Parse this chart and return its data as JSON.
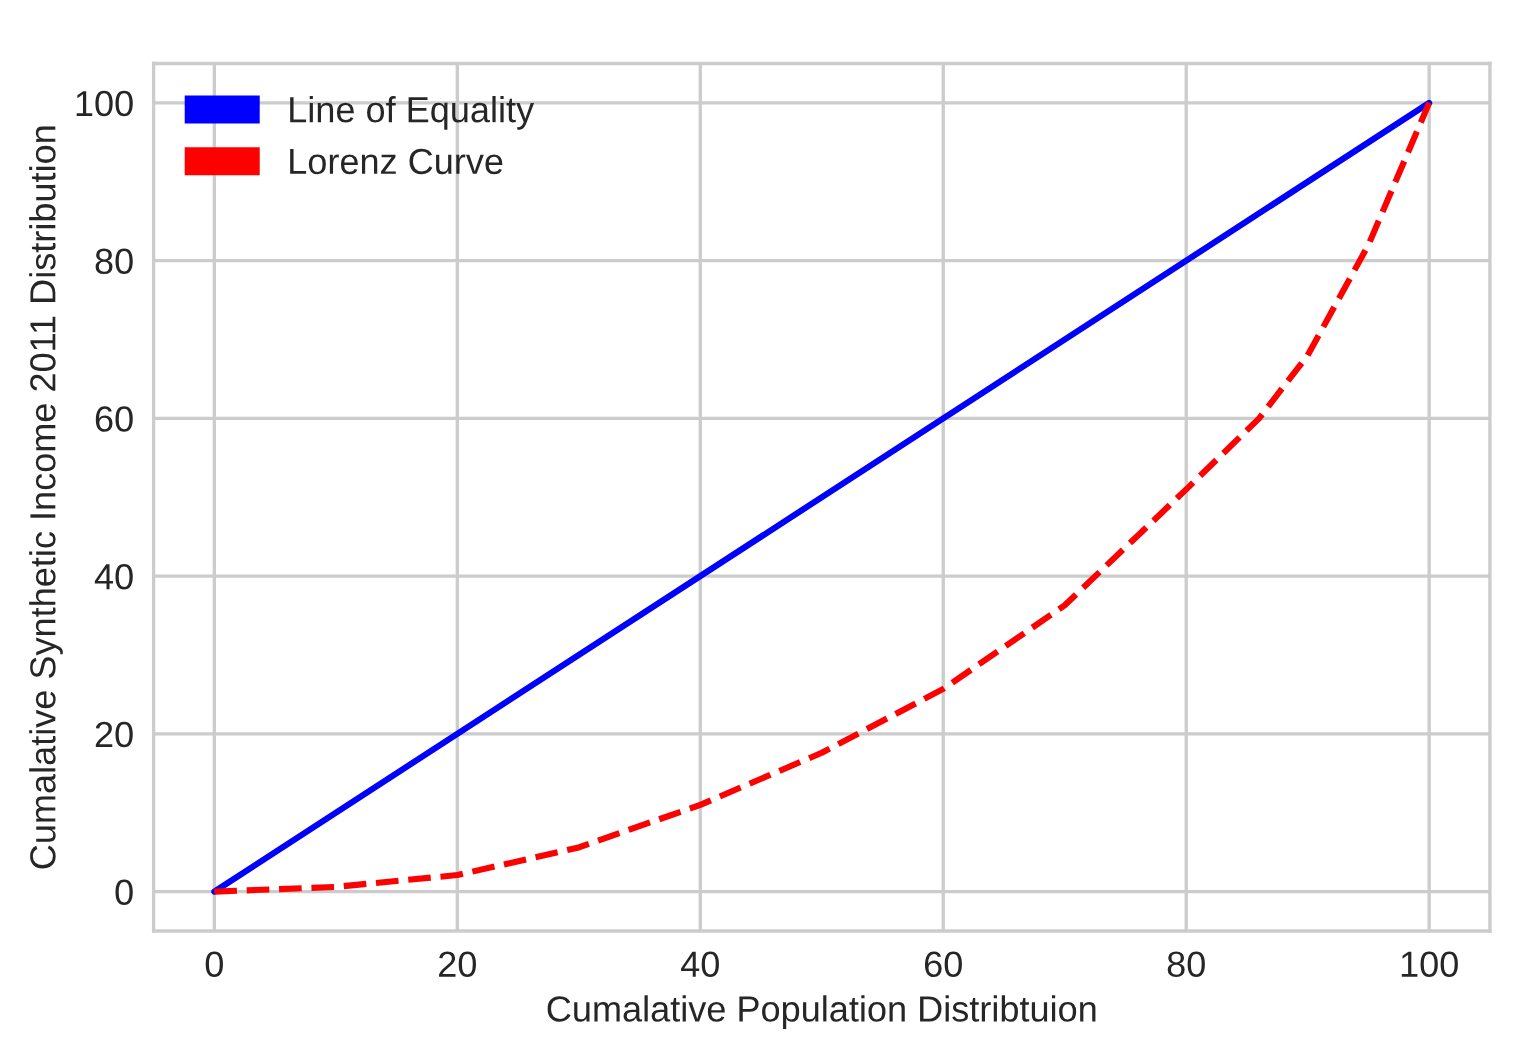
{
  "chart_data": {
    "type": "line",
    "xlabel": "Cumalative Population Distribtuion",
    "ylabel": "Cumalative Synthetic Income 2011 Distribution",
    "series": [
      {
        "name": "Line of Equality",
        "color": "#0000ff",
        "x": [
          0,
          100
        ],
        "values": [
          0,
          100
        ],
        "line_style": "solid"
      },
      {
        "name": "Lorenz Curve",
        "color": "#ff0000",
        "x": [
          0,
          10,
          20,
          30,
          40,
          50,
          60,
          70,
          80,
          86,
          90,
          95,
          100
        ],
        "values": [
          0,
          0.6,
          2.1,
          5.6,
          11,
          17.6,
          25.7,
          36.3,
          51,
          60,
          68,
          82,
          100
        ],
        "line_style": "dashed"
      }
    ],
    "xlim": [
      -5,
      105
    ],
    "ylim": [
      -5,
      105
    ],
    "xticks": [
      0,
      20,
      40,
      60,
      80,
      100
    ],
    "yticks": [
      0,
      20,
      40,
      60,
      80,
      100
    ],
    "grid": true,
    "legend": "top left",
    "marker": "none"
  }
}
